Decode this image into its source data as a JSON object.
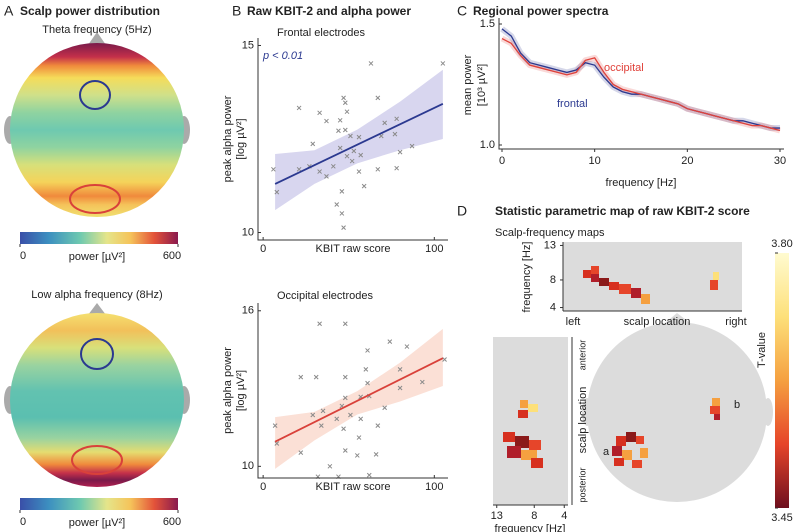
{
  "panels": [
    {
      "letter": "A",
      "title": "Scalp power distribution"
    },
    {
      "letter": "B",
      "title": "Raw KBIT-2 and alpha power"
    },
    {
      "letter": "C",
      "title": "Regional power spectra"
    },
    {
      "letter": "D",
      "title": "Statistic parametric map of raw KBIT-2 score"
    }
  ],
  "chart_data": [
    {
      "type": "topomap",
      "title": "Theta frequency (5Hz)",
      "colorbar_label": "power [µV²]",
      "clim": [
        0,
        600
      ],
      "cticks": [
        0,
        600
      ]
    },
    {
      "type": "topomap",
      "title": "Low alpha frequency (8Hz)",
      "colorbar_label": "power [µV²]",
      "clim": [
        0,
        600
      ],
      "cticks": [
        0,
        600
      ]
    },
    {
      "type": "scatter",
      "title": "Frontal electrodes",
      "annotation": "p < 0.01",
      "x_label": "KBIT raw score",
      "y_label": [
        "peak alpha power",
        "[log µV²]"
      ],
      "x": [
        63,
        105,
        21,
        33,
        47,
        48,
        49,
        37,
        45,
        71,
        78,
        67,
        77,
        29,
        44,
        48,
        51,
        56,
        45,
        49,
        27,
        21,
        33,
        37,
        41,
        6,
        8,
        52,
        53,
        46,
        46,
        43,
        47,
        56,
        59,
        57,
        67,
        78,
        69,
        80,
        87
      ],
      "values": [
        14.52,
        14.52,
        13.33,
        13.2,
        13.6,
        13.47,
        13.23,
        12.98,
        13.0,
        12.93,
        13.04,
        13.6,
        12.63,
        12.37,
        12.72,
        12.74,
        12.58,
        12.55,
        12.26,
        12.04,
        11.77,
        11.69,
        11.63,
        11.5,
        11.77,
        11.69,
        11.08,
        11.91,
        12.18,
        11.1,
        10.51,
        10.75,
        10.13,
        11.63,
        11.24,
        12.07,
        11.69,
        11.72,
        12.58,
        12.15,
        12.31
      ],
      "color": "#8a8a8a",
      "xlim": [
        -3,
        108
      ],
      "xticks": [
        0,
        100
      ],
      "ylim": [
        9.8,
        15.2
      ],
      "yticks": [
        10,
        15
      ],
      "fit": {
        "x": [
          7,
          105
        ],
        "values": [
          11.3,
          13.44
        ],
        "color": "#2b3990"
      },
      "ci": {
        "x": [
          7,
          30,
          55,
          80,
          105
        ],
        "lower": [
          10.6,
          11.3,
          11.85,
          12.2,
          12.5
        ],
        "upper": [
          12.1,
          12.2,
          12.75,
          13.5,
          14.35
        ],
        "color": "#d8d6ef"
      }
    },
    {
      "type": "scatter",
      "title": "Occipital electrodes",
      "x_label": "KBIT raw score",
      "y_label": [
        "peak alpha power",
        "[log µV²]"
      ],
      "x": [
        33,
        48,
        61,
        60,
        48,
        22,
        31,
        74,
        84,
        93,
        106,
        61,
        57,
        48,
        46,
        35,
        34,
        43,
        51,
        57,
        47,
        56,
        48,
        39,
        32,
        7,
        8,
        22,
        29,
        62,
        66,
        44,
        55,
        67,
        71,
        80,
        80,
        62
      ],
      "values": [
        15.5,
        15.5,
        14.47,
        13.74,
        13.44,
        13.44,
        13.44,
        14.81,
        14.62,
        13.25,
        14.12,
        13.21,
        12.68,
        12.64,
        12.33,
        12.14,
        11.57,
        11.83,
        11.98,
        11.83,
        11.45,
        11.11,
        10.61,
        10.0,
        9.6,
        11.57,
        10.88,
        10.53,
        11.98,
        9.66,
        10.46,
        9.6,
        10.42,
        11.57,
        12.26,
        13.02,
        13.74,
        12.71
      ],
      "color": "#8a8a8a",
      "xlim": [
        -3,
        108
      ],
      "xticks": [
        0,
        100
      ],
      "ylim": [
        9.55,
        16.3
      ],
      "yticks": [
        10,
        16
      ],
      "fit": {
        "x": [
          7,
          105
        ],
        "values": [
          10.95,
          14.17
        ],
        "color": "#d9413a"
      },
      "ci": {
        "x": [
          7,
          30,
          55,
          80,
          105
        ],
        "lower": [
          9.9,
          11.0,
          12.0,
          12.5,
          13.1
        ],
        "upper": [
          11.9,
          12.1,
          12.9,
          14.0,
          15.3
        ],
        "color": "#fbe0d6"
      }
    },
    {
      "type": "line",
      "x_label": "frequency [Hz]",
      "y_label": [
        "mean power",
        "[10³ µV²]"
      ],
      "x": [
        0,
        1,
        2,
        3,
        4,
        5,
        6,
        7,
        8,
        9,
        10,
        11,
        12,
        13,
        14,
        15,
        16,
        17,
        18,
        19,
        20,
        21,
        22,
        23,
        24,
        25,
        26,
        27,
        28,
        29,
        30
      ],
      "series": [
        {
          "name": "frontal",
          "color": "#2b3990",
          "values": [
            1.48,
            1.45,
            1.38,
            1.34,
            1.33,
            1.32,
            1.31,
            1.3,
            1.31,
            1.34,
            1.33,
            1.28,
            1.24,
            1.22,
            1.21,
            1.21,
            1.2,
            1.19,
            1.18,
            1.17,
            1.15,
            1.14,
            1.13,
            1.12,
            1.11,
            1.1,
            1.1,
            1.09,
            1.08,
            1.07,
            1.07
          ]
        },
        {
          "name": "occipital",
          "color": "#e0413a",
          "values": [
            1.44,
            1.42,
            1.37,
            1.33,
            1.32,
            1.31,
            1.3,
            1.29,
            1.3,
            1.35,
            1.36,
            1.3,
            1.25,
            1.23,
            1.22,
            1.21,
            1.2,
            1.19,
            1.18,
            1.17,
            1.15,
            1.14,
            1.13,
            1.12,
            1.11,
            1.1,
            1.09,
            1.08,
            1.08,
            1.07,
            1.06
          ]
        }
      ],
      "xlim": [
        0,
        30
      ],
      "xticks": [
        0,
        10,
        20,
        30
      ],
      "ylim": [
        1,
        1.5
      ],
      "yticks": [
        {
          "value": 1,
          "label": "1.0"
        },
        {
          "value": 1.5,
          "label": "1.5"
        }
      ]
    },
    {
      "type": "spm",
      "subtitle": "Scalp-frequency maps",
      "colorbar_label": "T-value",
      "clim": [
        3.45,
        3.8
      ],
      "cticks": [
        3.45,
        {
          "value": 3.8,
          "label": "3.80"
        }
      ],
      "top_map": {
        "ylim": [
          3.5,
          13.5
        ],
        "yticks": [
          4,
          8,
          13
        ],
        "y_label": "frequency [Hz]",
        "x_label": "scalp location",
        "x_ends": [
          "left",
          "right"
        ]
      },
      "side_map": {
        "xlim": [
          13.5,
          3.5
        ],
        "xticks": [
          13,
          8,
          4
        ],
        "x_label": "frequency [Hz]",
        "y_labels": [
          "anterior",
          "scalp location",
          "posterior"
        ]
      },
      "cluster_labels": [
        "a",
        "b"
      ]
    }
  ]
}
